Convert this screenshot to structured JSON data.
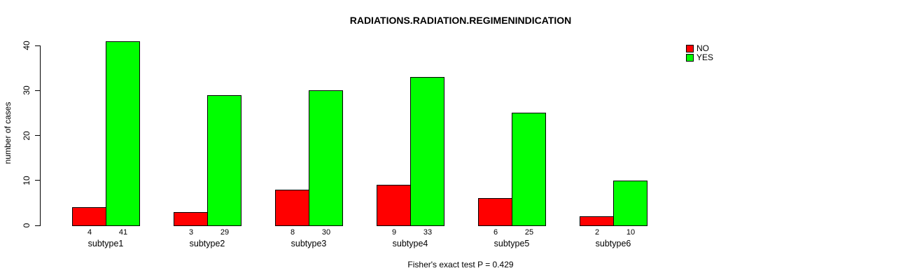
{
  "chart_data": {
    "type": "bar",
    "title": "RADIATIONS.RADIATION.REGIMENINDICATION",
    "ylabel": "number of cases",
    "xlabel": "",
    "categories": [
      "subtype1",
      "subtype2",
      "subtype3",
      "subtype4",
      "subtype5",
      "subtype6"
    ],
    "series": [
      {
        "name": "NO",
        "color": "#ff0000",
        "values": [
          4,
          3,
          8,
          9,
          6,
          2
        ]
      },
      {
        "name": "YES",
        "color": "#00ff00",
        "values": [
          41,
          29,
          30,
          33,
          25,
          10
        ]
      }
    ],
    "yticks": [
      0,
      10,
      20,
      30,
      40
    ],
    "ylim": [
      0,
      41
    ],
    "grid": false,
    "bar_value_labels": [
      [
        "4",
        "41"
      ],
      [
        "3",
        "29"
      ],
      [
        "8",
        "30"
      ],
      [
        "9",
        "33"
      ],
      [
        "6",
        "25"
      ],
      [
        "2",
        "10"
      ]
    ],
    "legend_position": "top-right",
    "caption": "Fisher's exact test P = 0.429"
  }
}
